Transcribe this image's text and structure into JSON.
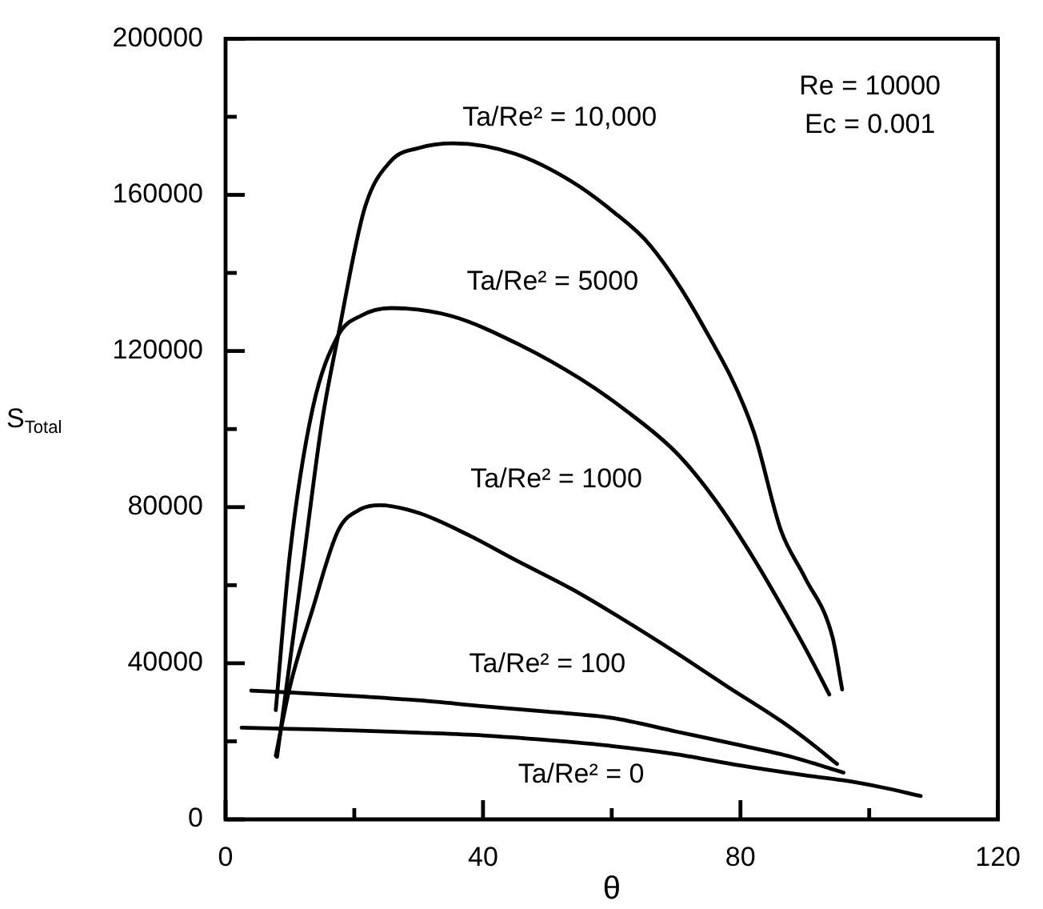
{
  "chart_data": {
    "type": "line",
    "xlabel": "θ",
    "ylabel": "S$_{Total}$",
    "xlim": [
      0,
      120
    ],
    "ylim": [
      0,
      200000
    ],
    "xticks": [
      0,
      {
        "value": 20,
        "label": null
      },
      40,
      {
        "value": 60,
        "label": null
      },
      80,
      {
        "value": 100,
        "label": null
      },
      120
    ],
    "yticks": [
      0,
      {
        "value": 20000,
        "label": null
      },
      40000,
      {
        "value": 60000,
        "label": null
      },
      80000,
      {
        "value": 100000,
        "label": null
      },
      120000,
      {
        "value": 140000,
        "label": null
      },
      160000,
      {
        "value": 180000,
        "label": null
      },
      200000
    ],
    "grid": false,
    "legend": false,
    "marker": "none",
    "line_style": "solid",
    "series": [
      {
        "name": "Ta/Re² = 0",
        "color": "#000000",
        "x": [
          2.5,
          10,
          20,
          30,
          40,
          50,
          60,
          70,
          80,
          90,
          96,
          102,
          108
        ],
        "values": [
          23500,
          23200,
          22800,
          22200,
          21500,
          20300,
          18800,
          16700,
          13800,
          11300,
          10000,
          8200,
          6000
        ]
      },
      {
        "name": "Ta/Re² = 100",
        "color": "#000000",
        "x": [
          4,
          10,
          20,
          30,
          40,
          50,
          60,
          70,
          80,
          88,
          94,
          96
        ],
        "values": [
          33000,
          32500,
          31600,
          30500,
          29000,
          27600,
          26000,
          22500,
          19000,
          16000,
          13000,
          12000
        ]
      },
      {
        "name": "Ta/Re² = 1000",
        "color": "#000000",
        "x": [
          7.8,
          10,
          13.5,
          17.5,
          21,
          24,
          30,
          37.8,
          45,
          53.8,
          62,
          70,
          78,
          86.3,
          91,
          95
        ],
        "values": [
          16300,
          34000,
          53700,
          74000,
          79500,
          80500,
          78500,
          72800,
          66500,
          59000,
          51000,
          42700,
          34000,
          25200,
          19500,
          14200
        ]
      },
      {
        "name": "Ta/Re² = 5000",
        "color": "#000000",
        "x": [
          7.8,
          10,
          13.5,
          17.5,
          21,
          25.7,
          35,
          45.8,
          55,
          62,
          70,
          76,
          82,
          88,
          91,
          93.8
        ],
        "values": [
          28000,
          68000,
          105000,
          124000,
          129000,
          131000,
          129000,
          121500,
          113000,
          105000,
          94000,
          82000,
          67000,
          50000,
          41000,
          32000
        ]
      },
      {
        "name": "Ta/Re² = 10,000",
        "color": "#000000",
        "x": [
          8,
          12,
          15,
          17.5,
          21.6,
          25.7,
          30,
          35.4,
          45,
          53.8,
          60,
          66,
          74,
          82,
          86.3,
          90,
          94.3,
          95.8
        ],
        "values": [
          16000,
          65000,
          102000,
          124000,
          156500,
          168700,
          172000,
          173200,
          170500,
          163400,
          156000,
          147000,
          127000,
          99600,
          74000,
          62000,
          46700,
          33300
        ]
      }
    ],
    "annotations": [
      "Re = 10000",
      "Ec = 0.001"
    ]
  }
}
